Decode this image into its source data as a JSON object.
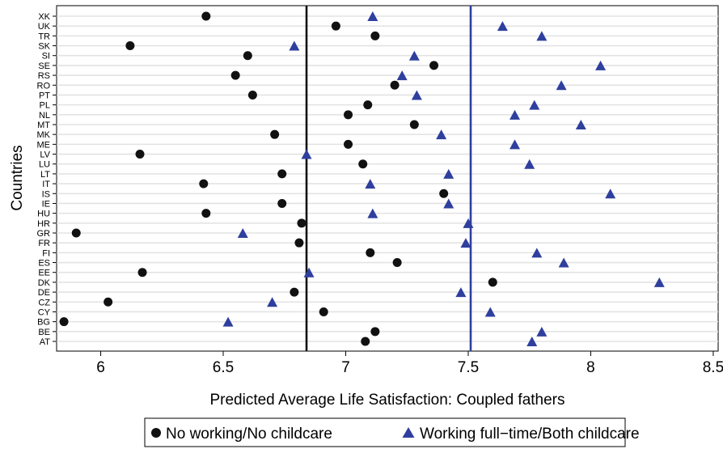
{
  "chart_data": {
    "type": "scatter",
    "xlabel": "Predicted Average Life Satisfaction: Coupled fathers",
    "ylabel": "Countries",
    "xlim": [
      5.82,
      8.52
    ],
    "x_ticks": [
      6,
      6.5,
      7,
      7.5,
      8,
      8.5
    ],
    "x_tick_labels": [
      "6",
      "6.5",
      "7",
      "7.5",
      "8",
      "8.5"
    ],
    "grid": true,
    "categories": [
      "XK",
      "UK",
      "TR",
      "SK",
      "SI",
      "SE",
      "RS",
      "RO",
      "PT",
      "PL",
      "NL",
      "MT",
      "MK",
      "ME",
      "LV",
      "LU",
      "LT",
      "IT",
      "IS",
      "IE",
      "HU",
      "HR",
      "GR",
      "FR",
      "FI",
      "ES",
      "EE",
      "DK",
      "DE",
      "CZ",
      "CY",
      "BG",
      "BE",
      "AT"
    ],
    "series": [
      {
        "name": "No working/No childcare",
        "marker": "circle",
        "color": "#111111",
        "values": [
          6.43,
          6.96,
          7.12,
          6.12,
          6.6,
          7.36,
          6.55,
          7.2,
          6.62,
          7.09,
          7.01,
          7.28,
          6.71,
          7.01,
          6.16,
          7.07,
          6.74,
          6.42,
          7.4,
          6.74,
          6.43,
          6.82,
          5.9,
          6.81,
          7.1,
          7.21,
          6.17,
          7.6,
          6.79,
          6.03,
          6.91,
          5.85,
          7.12,
          7.08
        ]
      },
      {
        "name": "Working full−time/Both childcare",
        "marker": "triangle",
        "color": "#2e3f9e",
        "values": [
          7.11,
          7.64,
          7.8,
          6.79,
          7.28,
          8.04,
          7.23,
          7.88,
          7.29,
          7.77,
          7.69,
          7.96,
          7.39,
          7.69,
          6.84,
          7.75,
          7.42,
          7.1,
          8.08,
          7.42,
          7.11,
          7.5,
          6.58,
          7.49,
          7.78,
          7.89,
          6.85,
          8.28,
          7.47,
          6.7,
          7.59,
          6.52,
          7.8,
          7.76
        ]
      }
    ],
    "reference_lines": [
      {
        "x": 6.84,
        "color": "#111111"
      },
      {
        "x": 7.51,
        "color": "#2e3f9e"
      }
    ],
    "legend_placement": "bottom"
  }
}
